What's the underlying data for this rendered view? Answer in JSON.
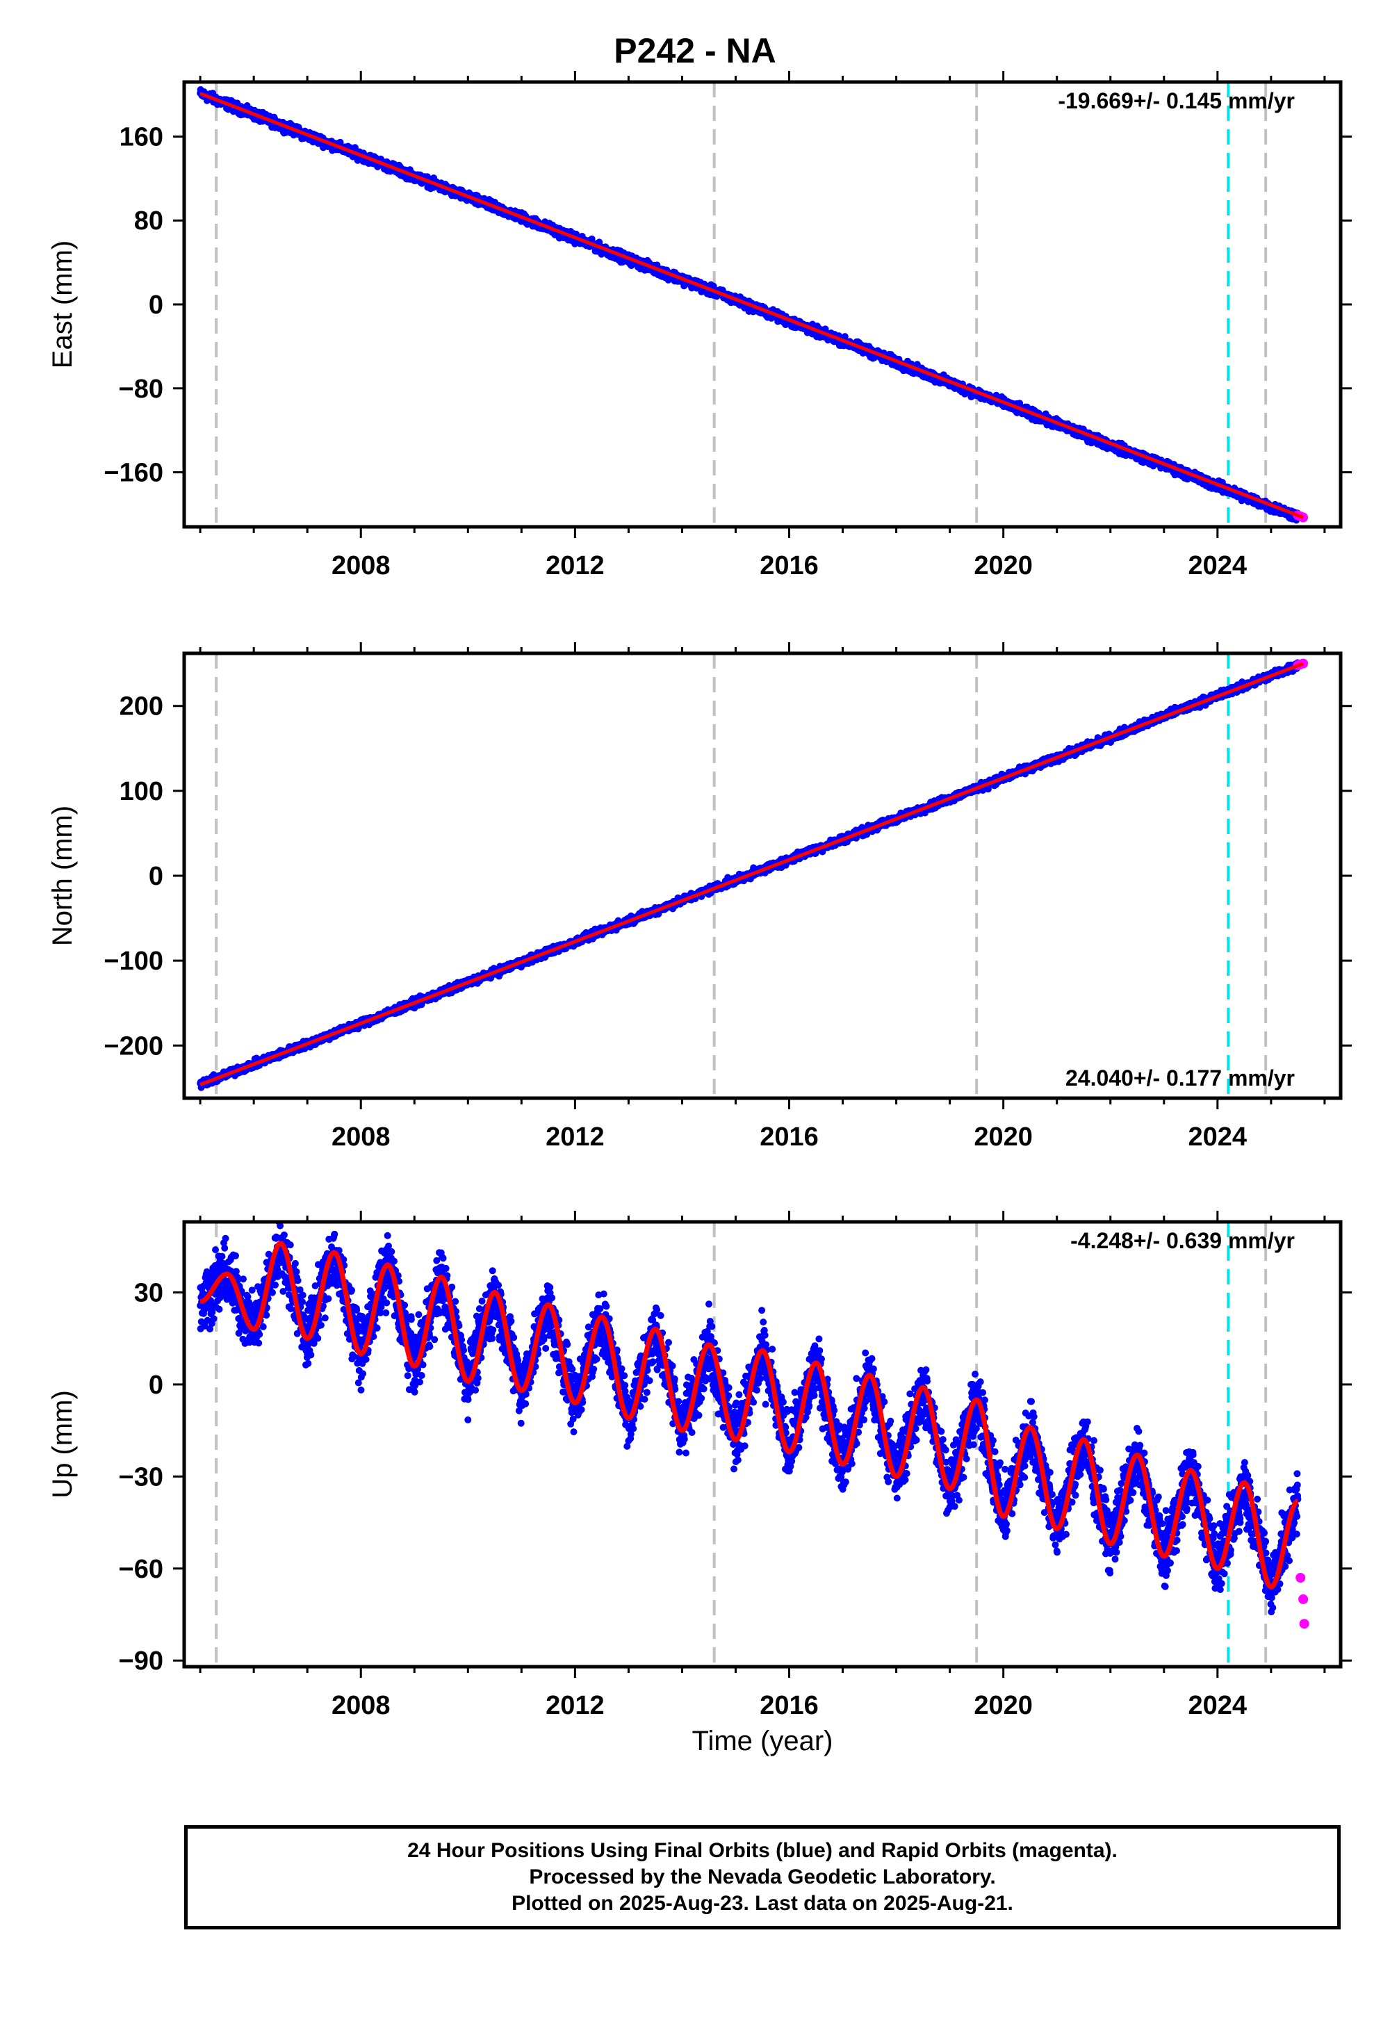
{
  "title": "P242 - NA",
  "colors": {
    "final_orbits": "#0000ff",
    "rapid_orbits": "#ff00ff",
    "model_fit": "#ff0000",
    "equipment_change": "#c0c0c0",
    "earthquake": "#00e5ee"
  },
  "xlabel": "Time (year)",
  "footer": {
    "line1": "24 Hour Positions Using Final Orbits (blue) and Rapid Orbits (magenta).",
    "line2": "Processed by the Nevada Geodetic Laboratory.",
    "line3": "Plotted on 2025-Aug-23. Last data on 2025-Aug-21."
  },
  "chart_data": [
    {
      "type": "scatter",
      "panel": "east",
      "ylabel": "East (mm)",
      "xlim": [
        2004.7,
        2026.3
      ],
      "ylim": [
        -212,
        212
      ],
      "xticks": [
        2008,
        2012,
        2016,
        2020,
        2024
      ],
      "yticks": [
        -160,
        -80,
        0,
        80,
        160
      ],
      "rate_label": "-19.669+/- 0.145 mm/yr",
      "rate_position": "top-right",
      "rate_mm_per_yr": -19.669,
      "series": [
        {
          "name": "Final Orbits (blue)",
          "x": [
            2005.0,
            2006.0,
            2007.0,
            2008.0,
            2009.0,
            2010.0,
            2011.0,
            2012.0,
            2013.0,
            2014.0,
            2015.0,
            2016.0,
            2017.0,
            2018.0,
            2019.0,
            2020.0,
            2021.0,
            2022.0,
            2023.0,
            2024.0,
            2025.0,
            2025.5
          ],
          "y": [
            201,
            181,
            161,
            142,
            122,
            102,
            83,
            63,
            43,
            24,
            4,
            -16,
            -35,
            -55,
            -75,
            -94,
            -114,
            -134,
            -153,
            -173,
            -193,
            -202
          ]
        },
        {
          "name": "Rapid Orbits (magenta)",
          "x": [
            2025.5,
            2025.55,
            2025.6
          ],
          "y": [
            -201,
            -202,
            -203
          ]
        }
      ],
      "model_fit": {
        "x": [
          2005.0,
          2025.6
        ],
        "y": [
          201,
          -203
        ]
      }
    },
    {
      "type": "scatter",
      "panel": "north",
      "ylabel": "North (mm)",
      "xlim": [
        2004.7,
        2026.3
      ],
      "ylim": [
        -262,
        262
      ],
      "xticks": [
        2008,
        2012,
        2016,
        2020,
        2024
      ],
      "yticks": [
        -200,
        -100,
        0,
        100,
        200
      ],
      "rate_label": "24.040+/- 0.177 mm/yr",
      "rate_position": "bottom-right",
      "rate_mm_per_yr": 24.04,
      "series": [
        {
          "name": "Final Orbits (blue)",
          "x": [
            2005.0,
            2006.0,
            2007.0,
            2008.0,
            2009.0,
            2010.0,
            2011.0,
            2012.0,
            2013.0,
            2014.0,
            2015.0,
            2016.0,
            2017.0,
            2018.0,
            2019.0,
            2020.0,
            2021.0,
            2022.0,
            2023.0,
            2024.0,
            2025.0,
            2025.5
          ],
          "y": [
            -246,
            -222,
            -198,
            -174,
            -150,
            -126,
            -102,
            -78,
            -53,
            -29,
            -5,
            19,
            43,
            67,
            91,
            115,
            139,
            163,
            188,
            212,
            236,
            248
          ]
        },
        {
          "name": "Rapid Orbits (magenta)",
          "x": [
            2025.5,
            2025.55,
            2025.6
          ],
          "y": [
            248,
            249,
            250
          ]
        }
      ],
      "model_fit": {
        "x": [
          2005.0,
          2025.6
        ],
        "y": [
          -246,
          250
        ]
      }
    },
    {
      "type": "scatter",
      "panel": "up",
      "ylabel": "Up (mm)",
      "xlim": [
        2004.7,
        2026.3
      ],
      "ylim": [
        -92,
        53
      ],
      "xticks": [
        2008,
        2012,
        2016,
        2020,
        2024
      ],
      "yticks": [
        -90,
        -60,
        -30,
        0,
        30
      ],
      "rate_label": "-4.248+/- 0.639 mm/yr",
      "rate_position": "top-right",
      "rate_mm_per_yr": -4.248,
      "series": [
        {
          "name": "Final Orbits (blue)",
          "x": [
            2005.0,
            2005.5,
            2006.0,
            2006.5,
            2007.0,
            2007.5,
            2008.0,
            2008.5,
            2009.0,
            2009.5,
            2010.0,
            2010.5,
            2011.0,
            2011.5,
            2012.0,
            2012.5,
            2013.0,
            2013.5,
            2014.0,
            2014.5,
            2015.0,
            2015.5,
            2016.0,
            2016.5,
            2017.0,
            2017.5,
            2018.0,
            2018.5,
            2019.0,
            2019.5,
            2020.0,
            2020.5,
            2021.0,
            2021.5,
            2022.0,
            2022.5,
            2023.0,
            2023.5,
            2024.0,
            2024.5,
            2025.0,
            2025.5
          ],
          "y": [
            26,
            37,
            24,
            39,
            21,
            36,
            17,
            32,
            12,
            27,
            8,
            24,
            5,
            20,
            2,
            18,
            0,
            15,
            -4,
            10,
            -6,
            8,
            -10,
            5,
            -13,
            2,
            -16,
            0,
            -18,
            -4,
            -22,
            -8,
            -26,
            -12,
            -30,
            -16,
            -34,
            -22,
            -40,
            -28,
            -44,
            -60
          ]
        },
        {
          "name": "Rapid Orbits (magenta)",
          "x": [
            2025.55,
            2025.6,
            2025.62
          ],
          "y": [
            -63,
            -70,
            -78
          ]
        }
      ],
      "model_fit": {
        "x": [
          2005.0,
          2005.5,
          2006.0,
          2006.5,
          2007.0,
          2007.5,
          2008.0,
          2008.5,
          2009.0,
          2009.5,
          2010.0,
          2010.5,
          2011.0,
          2011.5,
          2012.0,
          2012.5,
          2013.0,
          2013.5,
          2014.0,
          2014.5,
          2015.0,
          2015.5,
          2016.0,
          2016.5,
          2017.0,
          2017.5,
          2018.0,
          2018.5,
          2019.0,
          2019.5,
          2020.0,
          2020.5,
          2021.0,
          2021.5,
          2022.0,
          2022.5,
          2023.0,
          2023.5,
          2024.0,
          2024.5,
          2025.0,
          2025.5
        ],
        "y": [
          27,
          36,
          18,
          46,
          15,
          43,
          10,
          39,
          6,
          35,
          1,
          30,
          -2,
          26,
          -6,
          22,
          -11,
          18,
          -15,
          13,
          -18,
          11,
          -22,
          7,
          -26,
          3,
          -30,
          -1,
          -34,
          -5,
          -43,
          -14,
          -47,
          -18,
          -52,
          -23,
          -56,
          -28,
          -60,
          -32,
          -66,
          -38
        ]
      }
    }
  ],
  "events": {
    "equipment_change_years": [
      2005.3,
      2014.6,
      2019.5,
      2024.9
    ],
    "earthquake_years": [
      2024.2
    ]
  }
}
